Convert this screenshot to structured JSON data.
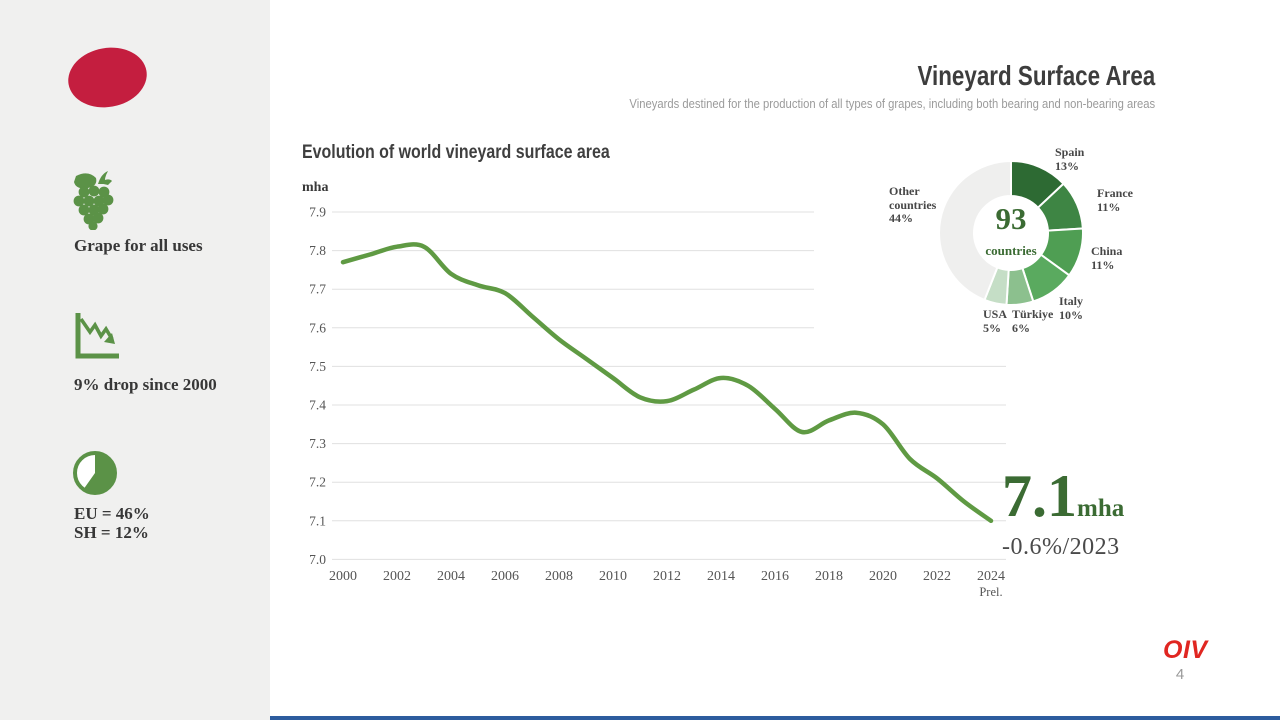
{
  "slide": {
    "title": "Vineyard Surface Area",
    "subtitle": "Vineyards destined for the production of all types of grapes, including both bearing and non-bearing areas",
    "logo": "OIV",
    "page_number": "4"
  },
  "sidebar": {
    "items": [
      {
        "icon": "grapes-icon",
        "label": "Grape for all uses"
      },
      {
        "icon": "declining-chart-icon",
        "label": "9% drop since 2000"
      },
      {
        "icon": "pie-icon",
        "lines": [
          "EU = 46%",
          "SH = 12%"
        ]
      }
    ]
  },
  "chart_data": [
    {
      "type": "line",
      "title": "Evolution of world vineyard surface area",
      "ylabel": "mha",
      "x": [
        2000,
        2001,
        2002,
        2003,
        2004,
        2005,
        2006,
        2007,
        2008,
        2009,
        2010,
        2011,
        2012,
        2013,
        2014,
        2015,
        2016,
        2017,
        2018,
        2019,
        2020,
        2021,
        2022,
        2023,
        2024
      ],
      "values": [
        7.77,
        7.79,
        7.81,
        7.81,
        7.74,
        7.71,
        7.69,
        7.63,
        7.57,
        7.52,
        7.47,
        7.42,
        7.41,
        7.44,
        7.47,
        7.45,
        7.39,
        7.33,
        7.36,
        7.38,
        7.35,
        7.26,
        7.21,
        7.15,
        7.1
      ],
      "ylim": [
        7.0,
        7.9
      ],
      "yticks": [
        7.9,
        7.8,
        7.7,
        7.6,
        7.5,
        7.4,
        7.3,
        7.2,
        7.1,
        7.0
      ],
      "xtick_labels": [
        "2000",
        "2002",
        "2004",
        "2006",
        "2008",
        "2010",
        "2012",
        "2014",
        "2016",
        "2018",
        "2020",
        "2022",
        "2024"
      ],
      "xtick_note": "Prel.",
      "grid": true,
      "line_color": "#5f9a43"
    },
    {
      "type": "donut",
      "center_value": "93",
      "center_label": "countries",
      "slices": [
        {
          "label": "Spain",
          "pct": 13,
          "pct_label": "13%",
          "color": "#2d6a33"
        },
        {
          "label": "France",
          "pct": 11,
          "pct_label": "11%",
          "color": "#3e8544"
        },
        {
          "label": "China",
          "pct": 11,
          "pct_label": "11%",
          "color": "#4f9e53"
        },
        {
          "label": "Italy",
          "pct": 10,
          "pct_label": "10%",
          "color": "#5aaa5f"
        },
        {
          "label": "Türkiye",
          "pct": 6,
          "pct_label": "6%",
          "color": "#8cc08e"
        },
        {
          "label": "USA",
          "pct": 5,
          "pct_label": "5%",
          "color": "#c5dec6"
        },
        {
          "label": "Other countries",
          "pct": 44,
          "pct_label": "44%",
          "color": "#efefee"
        }
      ]
    }
  ],
  "highlight": {
    "value": "7.1",
    "unit": "mha",
    "change": "-0.6%/2023"
  },
  "colors": {
    "sidebar_bg": "#f0f0ef",
    "accent_red": "#c41e3f",
    "accent_green": "#5b9247",
    "dark_green": "#3b6b33",
    "logo_red": "#e02621",
    "bottom_bar_blue": "#2d5c9e",
    "gridline": "#e0e0e0"
  }
}
